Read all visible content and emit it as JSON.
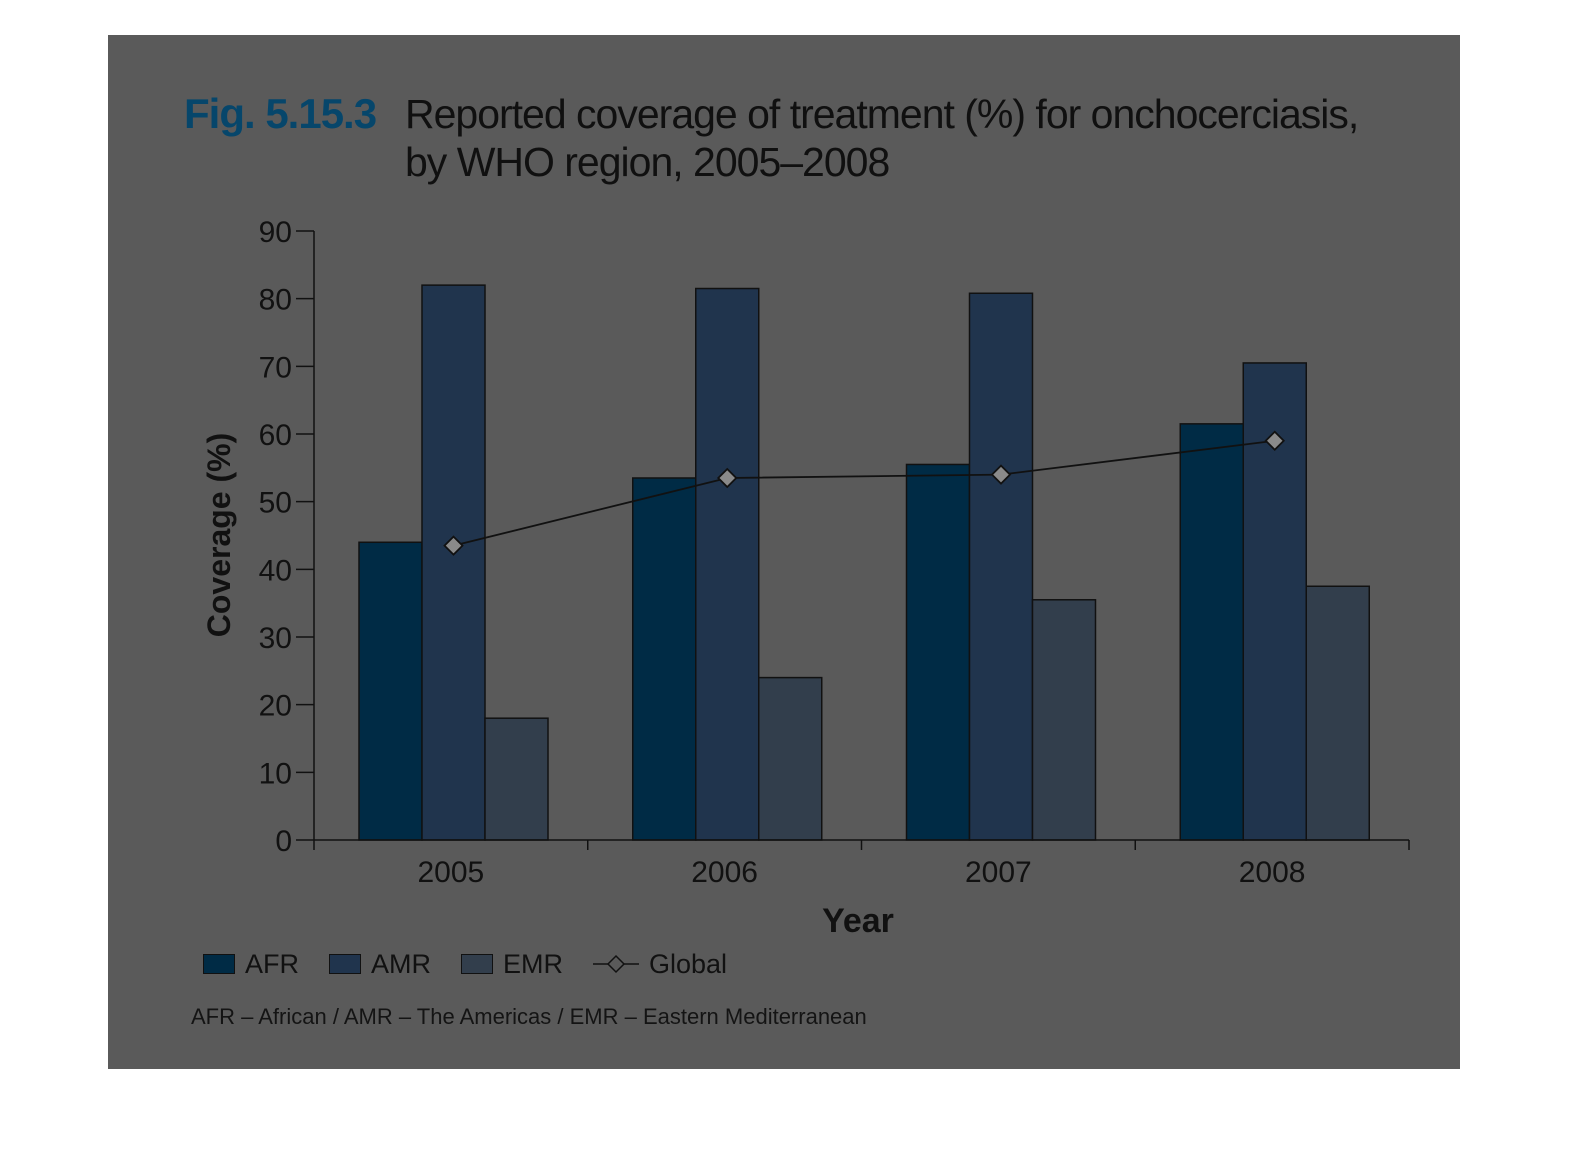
{
  "figure_number": "Fig. 5.15.3",
  "figure_title": "Reported coverage of treatment (%) for onchocerciasis, by WHO region, 2005–2008",
  "footnote": "AFR – African / AMR – The Americas / EMR – Eastern Mediterranean",
  "chart_data": {
    "type": "bar",
    "categories": [
      "2005",
      "2006",
      "2007",
      "2008"
    ],
    "series": [
      {
        "name": "AFR",
        "type": "bar",
        "values": [
          44,
          53.5,
          55.5,
          61.5
        ],
        "color": "#002b45"
      },
      {
        "name": "AMR",
        "type": "bar",
        "values": [
          82,
          81.5,
          80.8,
          70.5
        ],
        "color": "#20344d"
      },
      {
        "name": "EMR",
        "type": "bar",
        "values": [
          18,
          24,
          35.5,
          37.5
        ],
        "color": "#323e4c"
      },
      {
        "name": "Global",
        "type": "line",
        "marker": "diamond",
        "values": [
          43.5,
          53.5,
          54,
          59
        ],
        "color": "#111111"
      }
    ],
    "xlabel": "Year",
    "ylabel": "Coverage (%)",
    "ylim": [
      0,
      90
    ],
    "yticks": [
      0,
      10,
      20,
      30,
      40,
      50,
      60,
      70,
      80,
      90
    ],
    "grid": false,
    "legend_position": "bottom-left"
  }
}
